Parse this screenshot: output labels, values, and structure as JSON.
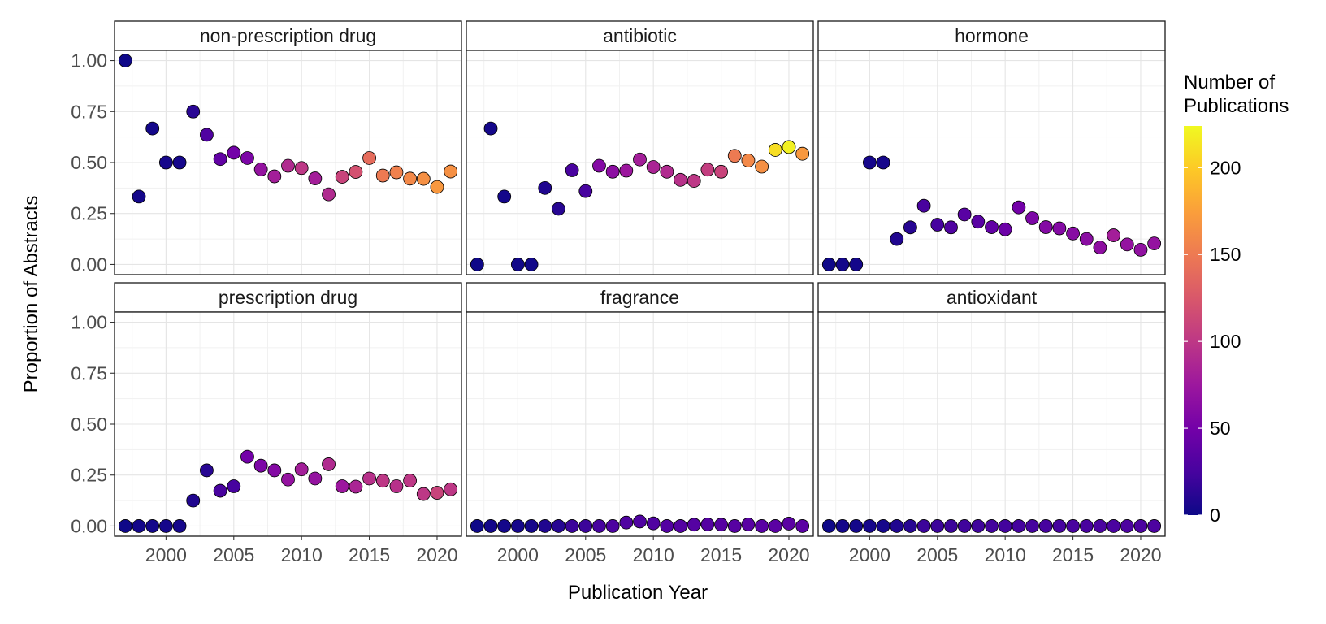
{
  "chart_data": {
    "type": "scatter",
    "xlabel": "Publication Year",
    "ylabel": "Proportion of Abstracts",
    "xlim": [
      1996.2,
      2021.8
    ],
    "ylim": [
      -0.05,
      1.05
    ],
    "x_ticks": [
      2000,
      2005,
      2010,
      2015,
      2020
    ],
    "y_ticks": [
      0.0,
      0.25,
      0.5,
      0.75,
      1.0
    ],
    "x_tick_labels": [
      "2000",
      "2005",
      "2010",
      "2015",
      "2020"
    ],
    "y_tick_labels": [
      "0.00",
      "0.25",
      "0.50",
      "0.75",
      "1.00"
    ],
    "grid": true,
    "layout": "facet grid 2 rows x 3 columns",
    "color_legend": {
      "title_line1": "Number of",
      "title_line2": "Publications",
      "min": 0,
      "max": 224,
      "ticks": [
        0,
        50,
        100,
        150,
        200
      ],
      "tick_labels": [
        "0",
        "50",
        "100",
        "150",
        "200"
      ],
      "palette": [
        "#0D0887",
        "#47039F",
        "#7301A8",
        "#9C179E",
        "#BD3786",
        "#D8576B",
        "#ED7953",
        "#FA9E3B",
        "#FDC926",
        "#F0F921"
      ],
      "position": "right"
    },
    "facets": [
      {
        "name": "non-prescription drug",
        "points": [
          [
            1997,
            1.0,
            1
          ],
          [
            1998,
            0.333,
            3
          ],
          [
            1999,
            0.667,
            3
          ],
          [
            2000,
            0.5,
            4
          ],
          [
            2001,
            0.5,
            4
          ],
          [
            2002,
            0.75,
            12
          ],
          [
            2003,
            0.636,
            30
          ],
          [
            2004,
            0.517,
            40
          ],
          [
            2005,
            0.548,
            50
          ],
          [
            2006,
            0.522,
            55
          ],
          [
            2007,
            0.466,
            70
          ],
          [
            2008,
            0.432,
            80
          ],
          [
            2009,
            0.484,
            90
          ],
          [
            2010,
            0.473,
            100
          ],
          [
            2011,
            0.422,
            80
          ],
          [
            2012,
            0.344,
            90
          ],
          [
            2013,
            0.43,
            110
          ],
          [
            2014,
            0.454,
            120
          ],
          [
            2015,
            0.522,
            140
          ],
          [
            2016,
            0.436,
            150
          ],
          [
            2017,
            0.452,
            155
          ],
          [
            2018,
            0.421,
            160
          ],
          [
            2019,
            0.42,
            165
          ],
          [
            2020,
            0.38,
            170
          ],
          [
            2021,
            0.456,
            165
          ]
        ]
      },
      {
        "name": "antibiotic",
        "points": [
          [
            1997,
            0.0,
            1
          ],
          [
            1998,
            0.667,
            3
          ],
          [
            1999,
            0.333,
            3
          ],
          [
            2000,
            0.0,
            2
          ],
          [
            2001,
            0.0,
            2
          ],
          [
            2002,
            0.375,
            8
          ],
          [
            2003,
            0.273,
            11
          ],
          [
            2004,
            0.462,
            26
          ],
          [
            2005,
            0.36,
            25
          ],
          [
            2006,
            0.484,
            60
          ],
          [
            2007,
            0.455,
            65
          ],
          [
            2008,
            0.46,
            75
          ],
          [
            2009,
            0.515,
            80
          ],
          [
            2010,
            0.478,
            85
          ],
          [
            2011,
            0.455,
            90
          ],
          [
            2012,
            0.415,
            95
          ],
          [
            2013,
            0.41,
            100
          ],
          [
            2014,
            0.465,
            105
          ],
          [
            2015,
            0.455,
            110
          ],
          [
            2016,
            0.533,
            150
          ],
          [
            2017,
            0.51,
            160
          ],
          [
            2018,
            0.48,
            165
          ],
          [
            2019,
            0.562,
            210
          ],
          [
            2020,
            0.576,
            220
          ],
          [
            2021,
            0.543,
            170
          ]
        ]
      },
      {
        "name": "hormone",
        "points": [
          [
            1997,
            0.0,
            1
          ],
          [
            1998,
            0.0,
            3
          ],
          [
            1999,
            0.0,
            3
          ],
          [
            2000,
            0.5,
            4
          ],
          [
            2001,
            0.5,
            4
          ],
          [
            2002,
            0.125,
            8
          ],
          [
            2003,
            0.182,
            11
          ],
          [
            2004,
            0.288,
            26
          ],
          [
            2005,
            0.195,
            25
          ],
          [
            2006,
            0.182,
            30
          ],
          [
            2007,
            0.245,
            35
          ],
          [
            2008,
            0.21,
            35
          ],
          [
            2009,
            0.183,
            40
          ],
          [
            2010,
            0.172,
            45
          ],
          [
            2011,
            0.28,
            50
          ],
          [
            2012,
            0.227,
            55
          ],
          [
            2013,
            0.183,
            60
          ],
          [
            2014,
            0.177,
            60
          ],
          [
            2015,
            0.152,
            62
          ],
          [
            2016,
            0.125,
            64
          ],
          [
            2017,
            0.083,
            66
          ],
          [
            2018,
            0.143,
            80
          ],
          [
            2019,
            0.098,
            70
          ],
          [
            2020,
            0.072,
            68
          ],
          [
            2021,
            0.103,
            70
          ]
        ]
      },
      {
        "name": "prescription drug",
        "points": [
          [
            1997,
            0.0,
            1
          ],
          [
            1998,
            0.0,
            3
          ],
          [
            1999,
            0.0,
            3
          ],
          [
            2000,
            0.0,
            4
          ],
          [
            2001,
            0.0,
            4
          ],
          [
            2002,
            0.125,
            8
          ],
          [
            2003,
            0.273,
            11
          ],
          [
            2004,
            0.173,
            26
          ],
          [
            2005,
            0.195,
            25
          ],
          [
            2006,
            0.34,
            50
          ],
          [
            2007,
            0.296,
            55
          ],
          [
            2008,
            0.273,
            60
          ],
          [
            2009,
            0.228,
            70
          ],
          [
            2010,
            0.278,
            80
          ],
          [
            2011,
            0.233,
            70
          ],
          [
            2012,
            0.303,
            90
          ],
          [
            2013,
            0.195,
            75
          ],
          [
            2014,
            0.193,
            85
          ],
          [
            2015,
            0.233,
            95
          ],
          [
            2016,
            0.222,
            100
          ],
          [
            2017,
            0.195,
            95
          ],
          [
            2018,
            0.223,
            100
          ],
          [
            2019,
            0.157,
            100
          ],
          [
            2020,
            0.163,
            110
          ],
          [
            2021,
            0.18,
            100
          ]
        ]
      },
      {
        "name": "fragrance",
        "points": [
          [
            1997,
            0.0,
            1
          ],
          [
            1998,
            0.0,
            3
          ],
          [
            1999,
            0.0,
            3
          ],
          [
            2000,
            0.0,
            4
          ],
          [
            2001,
            0.0,
            4
          ],
          [
            2002,
            0.0,
            8
          ],
          [
            2003,
            0.0,
            11
          ],
          [
            2004,
            0.0,
            20
          ],
          [
            2005,
            0.0,
            20
          ],
          [
            2006,
            0.0,
            25
          ],
          [
            2007,
            0.0,
            28
          ],
          [
            2008,
            0.017,
            30
          ],
          [
            2009,
            0.022,
            30
          ],
          [
            2010,
            0.013,
            30
          ],
          [
            2011,
            0.0,
            32
          ],
          [
            2012,
            0.0,
            32
          ],
          [
            2013,
            0.007,
            33
          ],
          [
            2014,
            0.008,
            33
          ],
          [
            2015,
            0.007,
            34
          ],
          [
            2016,
            0.0,
            34
          ],
          [
            2017,
            0.008,
            35
          ],
          [
            2018,
            0.0,
            35
          ],
          [
            2019,
            0.0,
            36
          ],
          [
            2020,
            0.012,
            36
          ],
          [
            2021,
            0.0,
            36
          ]
        ]
      },
      {
        "name": "antioxidant",
        "points": [
          [
            1997,
            0.0,
            1
          ],
          [
            1998,
            0.0,
            3
          ],
          [
            1999,
            0.0,
            3
          ],
          [
            2000,
            0.0,
            4
          ],
          [
            2001,
            0.0,
            4
          ],
          [
            2002,
            0.0,
            8
          ],
          [
            2003,
            0.0,
            11
          ],
          [
            2004,
            0.0,
            20
          ],
          [
            2005,
            0.0,
            20
          ],
          [
            2006,
            0.0,
            20
          ],
          [
            2007,
            0.0,
            22
          ],
          [
            2008,
            0.0,
            22
          ],
          [
            2009,
            0.0,
            23
          ],
          [
            2010,
            0.0,
            23
          ],
          [
            2011,
            0.0,
            24
          ],
          [
            2012,
            0.0,
            24
          ],
          [
            2013,
            0.0,
            25
          ],
          [
            2014,
            0.0,
            25
          ],
          [
            2015,
            0.0,
            26
          ],
          [
            2016,
            0.0,
            26
          ],
          [
            2017,
            0.0,
            27
          ],
          [
            2018,
            0.0,
            27
          ],
          [
            2019,
            0.0,
            28
          ],
          [
            2020,
            0.0,
            28
          ],
          [
            2021,
            0.0,
            28
          ]
        ]
      }
    ]
  }
}
